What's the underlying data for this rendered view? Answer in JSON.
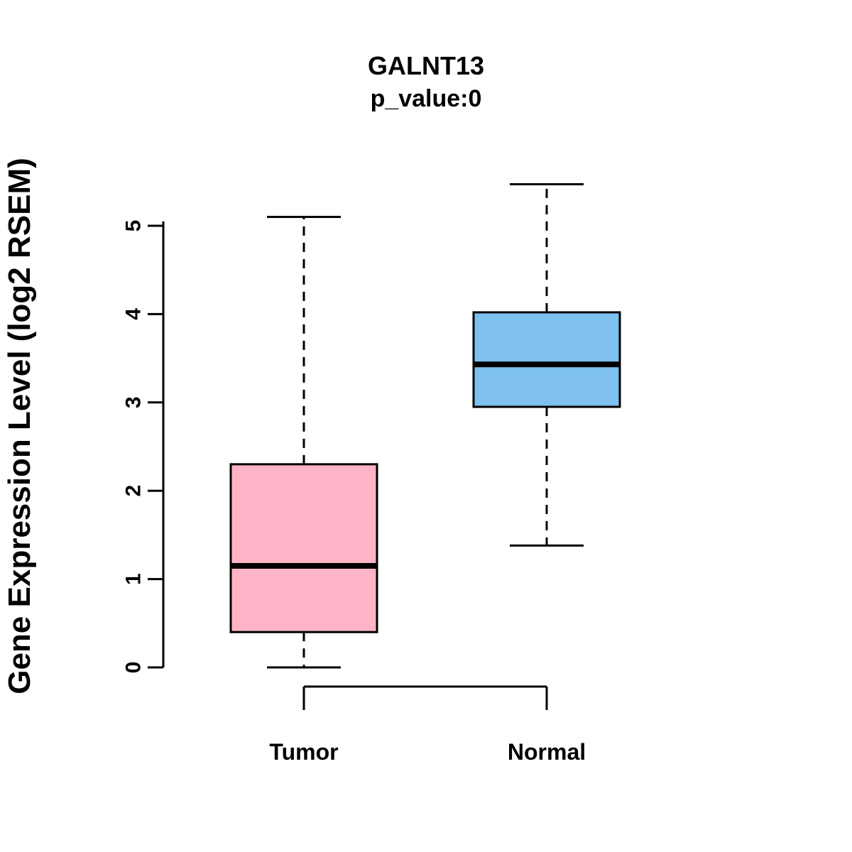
{
  "chart_data": {
    "type": "boxplot",
    "title": "GALNT13",
    "subtitle": "p_value:0",
    "ylabel": "Gene Expression Level (log2 RSEM)",
    "xlabel": "",
    "ylim": [
      0,
      5.5
    ],
    "yticks": [
      0,
      1,
      2,
      3,
      4,
      5
    ],
    "grid": false,
    "categories": [
      "Tumor",
      "Normal"
    ],
    "series": [
      {
        "name": "Tumor",
        "color": "#FFB3C6",
        "whisker_low": 0.0,
        "q1": 0.4,
        "median": 1.15,
        "q3": 2.3,
        "whisker_high": 5.1
      },
      {
        "name": "Normal",
        "color": "#7EC0EE",
        "whisker_low": 1.38,
        "q1": 2.95,
        "median": 3.43,
        "q3": 4.02,
        "whisker_high": 5.47
      }
    ]
  }
}
